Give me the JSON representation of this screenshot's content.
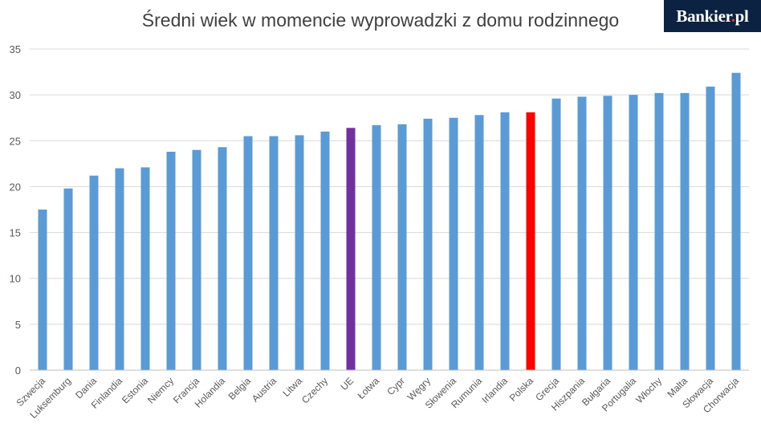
{
  "logo": {
    "brand": "Bankier",
    "dot": ".",
    "suffix": "pl"
  },
  "colors": {
    "default": "#5b9bd5",
    "eu": "#7030a0",
    "poland": "#ff0000",
    "grid": "#d9d9d9",
    "axis": "#bfbfbf"
  },
  "chart_data": {
    "type": "bar",
    "title": "Średni wiek w momencie wyprowadzki z domu rodzinnego",
    "xlabel": "",
    "ylabel": "",
    "ylim": [
      0,
      35
    ],
    "yticks": [
      0,
      5,
      10,
      15,
      20,
      25,
      30,
      35
    ],
    "grid": true,
    "categories": [
      "Szwecja",
      "Luksemburg",
      "Dania",
      "Finlandia",
      "Estonia",
      "Niemcy",
      "Francja",
      "Holandia",
      "Belgia",
      "Austria",
      "Litwa",
      "Czechy",
      "UE",
      "Łotwa",
      "Cypr",
      "Węgry",
      "Słowenia",
      "Rumunia",
      "Irlandia",
      "Polska",
      "Grecja",
      "Hiszpania",
      "Bułgaria",
      "Portugalia",
      "Włochy",
      "Malta",
      "Słowacja",
      "Chorwacja"
    ],
    "values": [
      17.5,
      19.8,
      21.2,
      22.0,
      22.1,
      23.8,
      24.0,
      24.3,
      25.5,
      25.5,
      25.6,
      26.0,
      26.4,
      26.7,
      26.8,
      27.4,
      27.5,
      27.8,
      28.1,
      28.1,
      29.6,
      29.8,
      29.9,
      30.0,
      30.2,
      30.2,
      30.9,
      32.4
    ],
    "highlight": {
      "UE": "eu",
      "Polska": "poland"
    }
  }
}
